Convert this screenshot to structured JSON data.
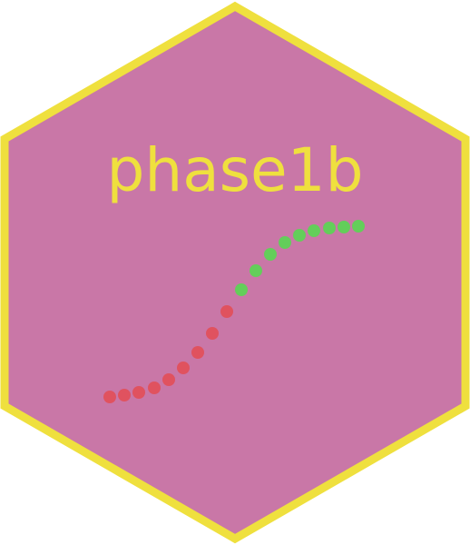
{
  "logo": {
    "title": "phase1b",
    "colors": {
      "background": "#C977A7",
      "border": "#EFE03E",
      "title": "#EFE03E",
      "dots_lower": "#E0525F",
      "dots_upper": "#63CE5A"
    },
    "shape": "hexagon",
    "decoration": "sigmoid-dot-curve"
  }
}
